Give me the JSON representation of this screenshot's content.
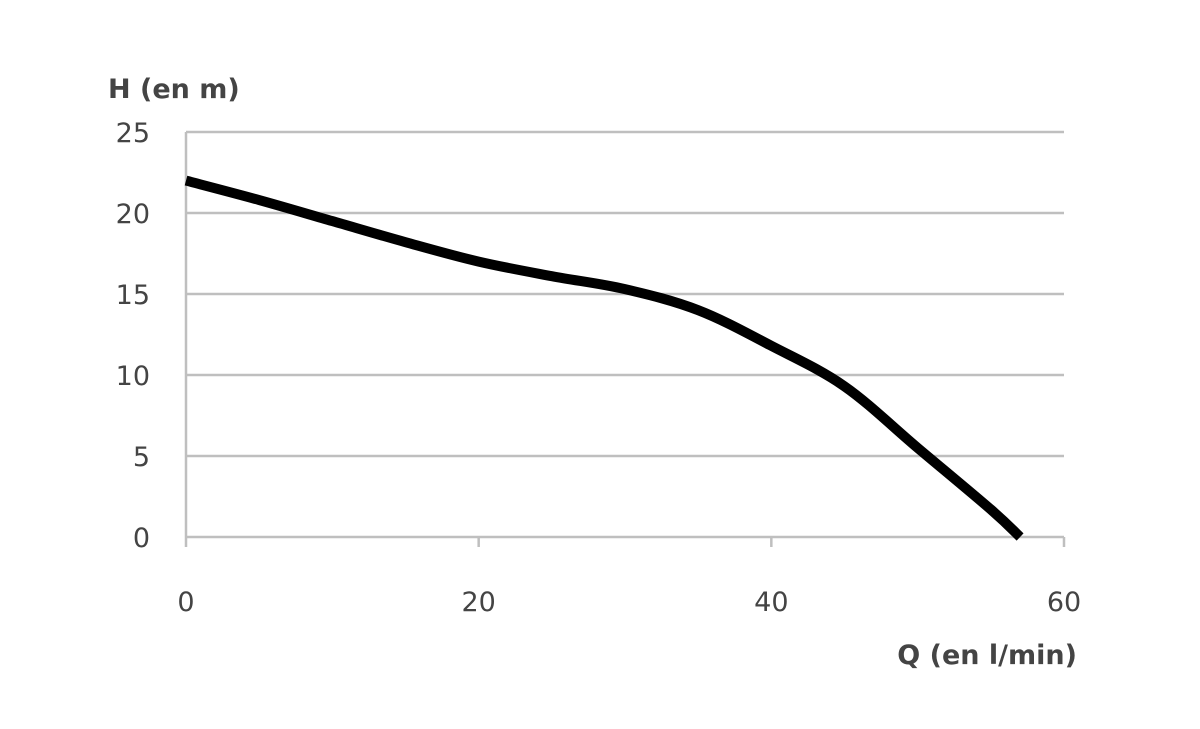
{
  "chart_data": {
    "type": "line",
    "title": "",
    "xlabel": "Q (en l/min)",
    "ylabel": "H (en m)",
    "xlim": [
      0,
      60
    ],
    "ylim": [
      0,
      25
    ],
    "xticks": [
      0,
      20,
      40,
      60
    ],
    "yticks": [
      0,
      5,
      10,
      15,
      20,
      25
    ],
    "grid": "horizontal",
    "line_color": "#000000",
    "grid_color": "#bfbfbf",
    "series": [
      {
        "x": [
          0,
          5,
          10,
          15,
          20,
          25,
          30,
          35,
          40,
          45,
          50,
          55,
          57
        ],
        "y": [
          22,
          20.8,
          19.5,
          18.2,
          17,
          16.1,
          15.3,
          14,
          11.8,
          9.3,
          5.5,
          1.7,
          0
        ]
      }
    ]
  }
}
